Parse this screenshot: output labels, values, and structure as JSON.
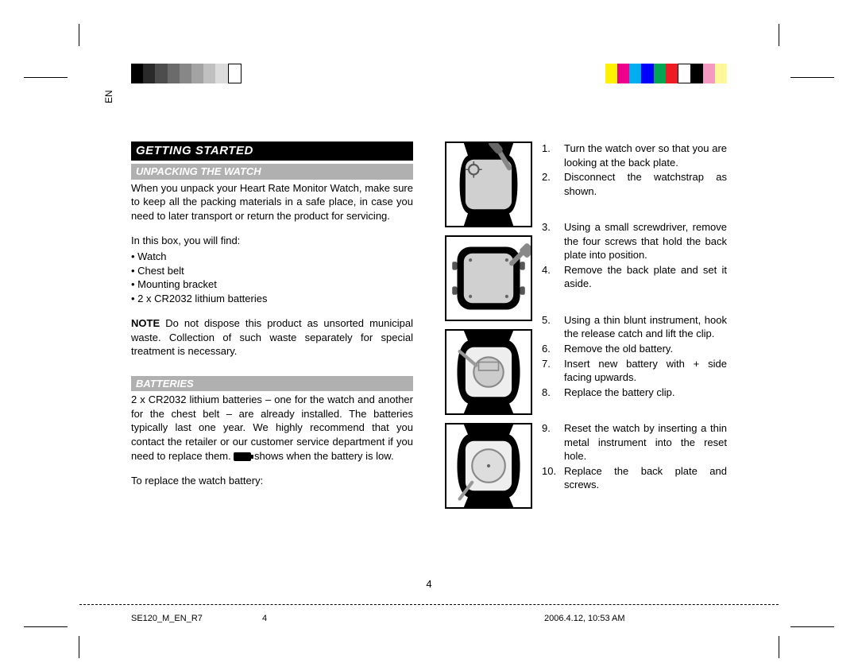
{
  "colorBar": {
    "left": [
      "#000000",
      "#2a2a2a",
      "#4d4d4d",
      "#6b6b6b",
      "#878787",
      "#a3a3a3",
      "#c0c0c0",
      "#dcdcdc",
      "#ffffff"
    ],
    "right": [
      "#fff200",
      "#ec008c",
      "#00aeef",
      "#0000ff",
      "#00a651",
      "#ed1c24",
      "#ffffff",
      "#000000",
      "#f49ac1",
      "#fff799"
    ]
  },
  "lang": "EN",
  "headings": {
    "main": "GETTING STARTED",
    "unpacking": "UNPACKING THE WATCH",
    "batteries": "BATTERIES"
  },
  "unpacking": {
    "para": "When you unpack your Heart Rate Monitor Watch, make sure to keep all the packing materials in a safe place, in case you need to later transport or return the product for servicing.",
    "listIntro": "In this box, you will find:",
    "items": [
      "Watch",
      "Chest belt",
      "Mounting bracket",
      "2 x CR2032 lithium batteries"
    ],
    "noteLabel": "NOTE",
    "note": "Do not dispose this product as unsorted municipal waste. Collection of such waste separately for special treatment is necessary."
  },
  "batteries": {
    "para1a": "2 x CR2032 lithium batteries – one for the watch and another for the chest belt – are already installed. The batteries typically last one year. We highly recommend that you contact the retailer or our customer service department if you need to replace them. ",
    "para1b": " shows when the battery is low.",
    "para2": "To replace the watch battery:"
  },
  "steps": [
    [
      "Turn the watch over so that you are looking at the back plate.",
      "Disconnect the watchstrap as shown."
    ],
    [
      "Using a small screwdriver, remove the four screws that hold the back plate into position.",
      "Remove the back plate and set it aside."
    ],
    [
      "Using a thin blunt instrument, hook the release catch and lift the clip.",
      "Remove the old battery.",
      "Insert new battery with + side facing upwards.",
      "Replace the battery clip."
    ],
    [
      "Reset the watch by inserting a thin metal instrument into the reset hole.",
      "Replace the back plate and screws."
    ]
  ],
  "pageNumber": "4",
  "footer": {
    "doc": "SE120_M_EN_R7",
    "page": "4",
    "timestamp": "2006.4.12, 10:53 AM"
  },
  "icons": {
    "lowBattery": "low-battery-icon"
  }
}
